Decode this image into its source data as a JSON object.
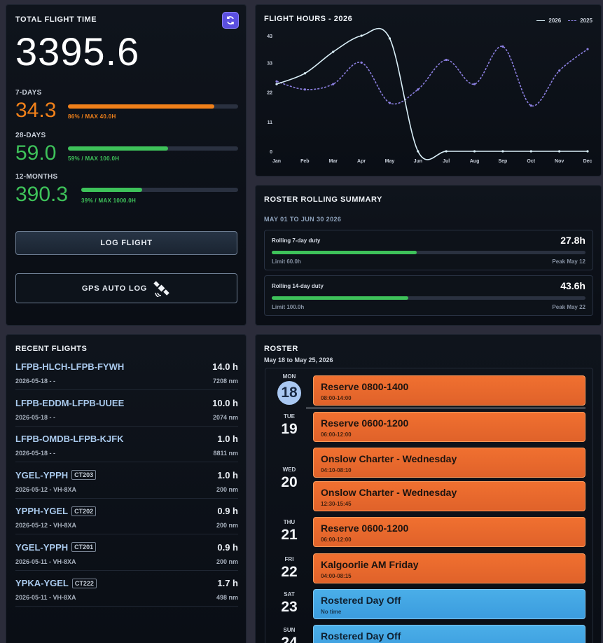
{
  "totals": {
    "title": "TOTAL FLIGHT TIME",
    "total": "3395.6",
    "metrics": [
      {
        "label": "7-DAYS",
        "value": "34.3",
        "note": "86% / MAX 40.0H",
        "fraction": 0.86,
        "color": "#f0801a"
      },
      {
        "label": "28-DAYS",
        "value": "59.0",
        "note": "59% / MAX 100.0H",
        "fraction": 0.59,
        "color": "#3ec25a"
      },
      {
        "label": "12-MONTHS",
        "value": "390.3",
        "note": "39% / MAX 1000.0H",
        "fraction": 0.39,
        "color": "#3ec25a"
      }
    ],
    "log_flight": "LOG FLIGHT",
    "gps_log": "GPS AUTO LOG"
  },
  "chart": {
    "title": "FLIGHT HOURS - 2026",
    "legend": [
      "2026",
      "2025"
    ]
  },
  "chart_data": {
    "type": "line",
    "x": [
      "Jan",
      "Feb",
      "Mar",
      "Apr",
      "May",
      "Jun",
      "Jul",
      "Aug",
      "Sep",
      "Oct",
      "Nov",
      "Dec"
    ],
    "yticks": [
      0,
      11,
      22,
      33,
      43
    ],
    "ylim": [
      0,
      43
    ],
    "series": [
      {
        "name": "2026",
        "values": [
          25,
          29,
          37,
          43,
          42,
          0,
          0,
          0,
          0,
          0,
          0,
          0
        ],
        "color": "#d9eef7",
        "style": "solid"
      },
      {
        "name": "2025",
        "values": [
          26,
          23,
          25,
          33,
          18,
          23,
          34,
          25,
          39,
          17,
          30,
          38
        ],
        "color": "#8b7fe0",
        "style": "dashed"
      }
    ],
    "grid": false,
    "legend_position": "top-right"
  },
  "summary": {
    "title": "ROSTER ROLLING SUMMARY",
    "range": "MAY 01 TO JUN 30 2026",
    "items": [
      {
        "name": "Rolling 7-day duty",
        "value": "27.8h",
        "fraction": 0.463,
        "limit": "Limit 60.0h",
        "peak": "Peak May 12"
      },
      {
        "name": "Rolling 14-day duty",
        "value": "43.6h",
        "fraction": 0.436,
        "limit": "Limit 100.0h",
        "peak": "Peak May 22"
      }
    ]
  },
  "recent": {
    "title": "RECENT FLIGHTS",
    "flights": [
      {
        "route": "LFPB-HLCH-LFPB-FYWH",
        "tag": "",
        "sub": "2026-05-18 - -",
        "hours": "14.0 h",
        "nm": "7208 nm"
      },
      {
        "route": "LFPB-EDDM-LFPB-UUEE",
        "tag": "",
        "sub": "2026-05-18 - -",
        "hours": "10.0 h",
        "nm": "2074 nm"
      },
      {
        "route": "LFPB-OMDB-LFPB-KJFK",
        "tag": "",
        "sub": "2026-05-18 - -",
        "hours": "1.0 h",
        "nm": "8811 nm"
      },
      {
        "route": "YGEL-YPPH",
        "tag": "CT203",
        "sub": "2026-05-12 - VH-8XA",
        "hours": "1.0 h",
        "nm": "200 nm"
      },
      {
        "route": "YPPH-YGEL",
        "tag": "CT202",
        "sub": "2026-05-12 - VH-8XA",
        "hours": "0.9 h",
        "nm": "200 nm"
      },
      {
        "route": "YGEL-YPPH",
        "tag": "CT201",
        "sub": "2026-05-11 - VH-8XA",
        "hours": "0.9 h",
        "nm": "200 nm"
      },
      {
        "route": "YPKA-YGEL",
        "tag": "CT222",
        "sub": "2026-05-11 - VH-8XA",
        "hours": "1.7 h",
        "nm": "498 nm"
      }
    ]
  },
  "roster": {
    "title": "ROSTER",
    "range": "May 18 to May 25, 2026",
    "days": [
      {
        "dow": "MON",
        "num": "18"
      },
      {
        "dow": "TUE",
        "num": "19"
      },
      {
        "dow": "WED",
        "num": "20"
      },
      {
        "dow": "THU",
        "num": "21"
      },
      {
        "dow": "FRI",
        "num": "22"
      },
      {
        "dow": "SAT",
        "num": "23"
      },
      {
        "dow": "SUN",
        "num": "24"
      }
    ],
    "events": [
      {
        "title": "Reserve 0800-1400",
        "time": "08:00-14:00",
        "kind": "orange"
      },
      {
        "title": "Reserve 0600-1200",
        "time": "06:00-12:00",
        "kind": "orange"
      },
      {
        "title": "Onslow Charter - Wednesday",
        "time": "04:10-08:10",
        "kind": "orange"
      },
      {
        "title": "Onslow Charter - Wednesday",
        "time": "12:30-15:45",
        "kind": "orange"
      },
      {
        "title": "Reserve 0600-1200",
        "time": "06:00-12:00",
        "kind": "orange"
      },
      {
        "title": "Kalgoorlie AM Friday",
        "time": "04:00-08:15",
        "kind": "orange"
      },
      {
        "title": "Rostered Day Off",
        "time": "No time",
        "kind": "blue"
      },
      {
        "title": "Rostered Day Off",
        "time": "",
        "kind": "blue"
      }
    ]
  }
}
